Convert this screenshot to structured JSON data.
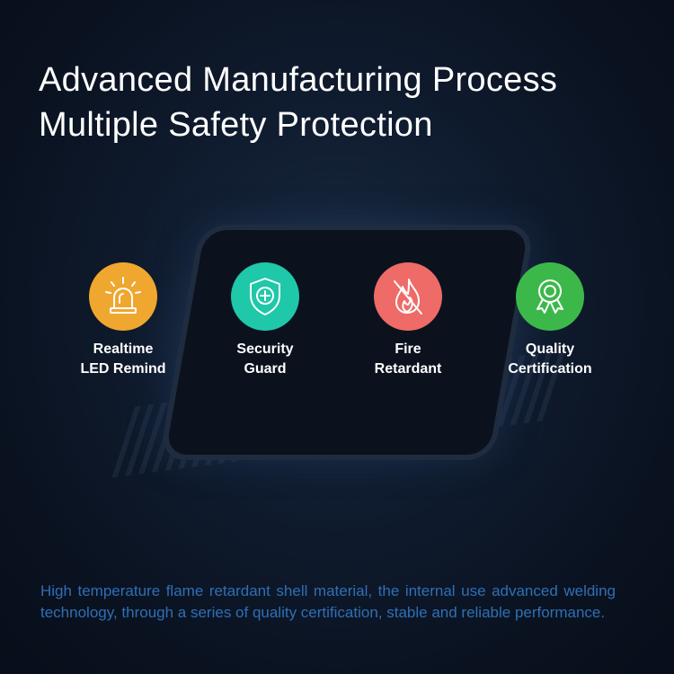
{
  "title": {
    "line1": "Advanced Manufacturing Process",
    "line2": "Multiple Safety Protection"
  },
  "features": [
    {
      "line1": "Realtime",
      "line2": "LED Remind",
      "icon": "alarm-light-icon",
      "color": "#f0a72f"
    },
    {
      "line1": "Security",
      "line2": "Guard",
      "icon": "shield-plus-icon",
      "color": "#1fc8a9"
    },
    {
      "line1": "Fire",
      "line2": "Retardant",
      "icon": "no-fire-icon",
      "color": "#ee6b67"
    },
    {
      "line1": "Quality",
      "line2": "Certification",
      "icon": "award-ribbon-icon",
      "color": "#3cb84b"
    }
  ],
  "description": "High temperature flame retardant shell material, the internal use advanced welding technology, through a series of quality certification, stable and reliable performance."
}
